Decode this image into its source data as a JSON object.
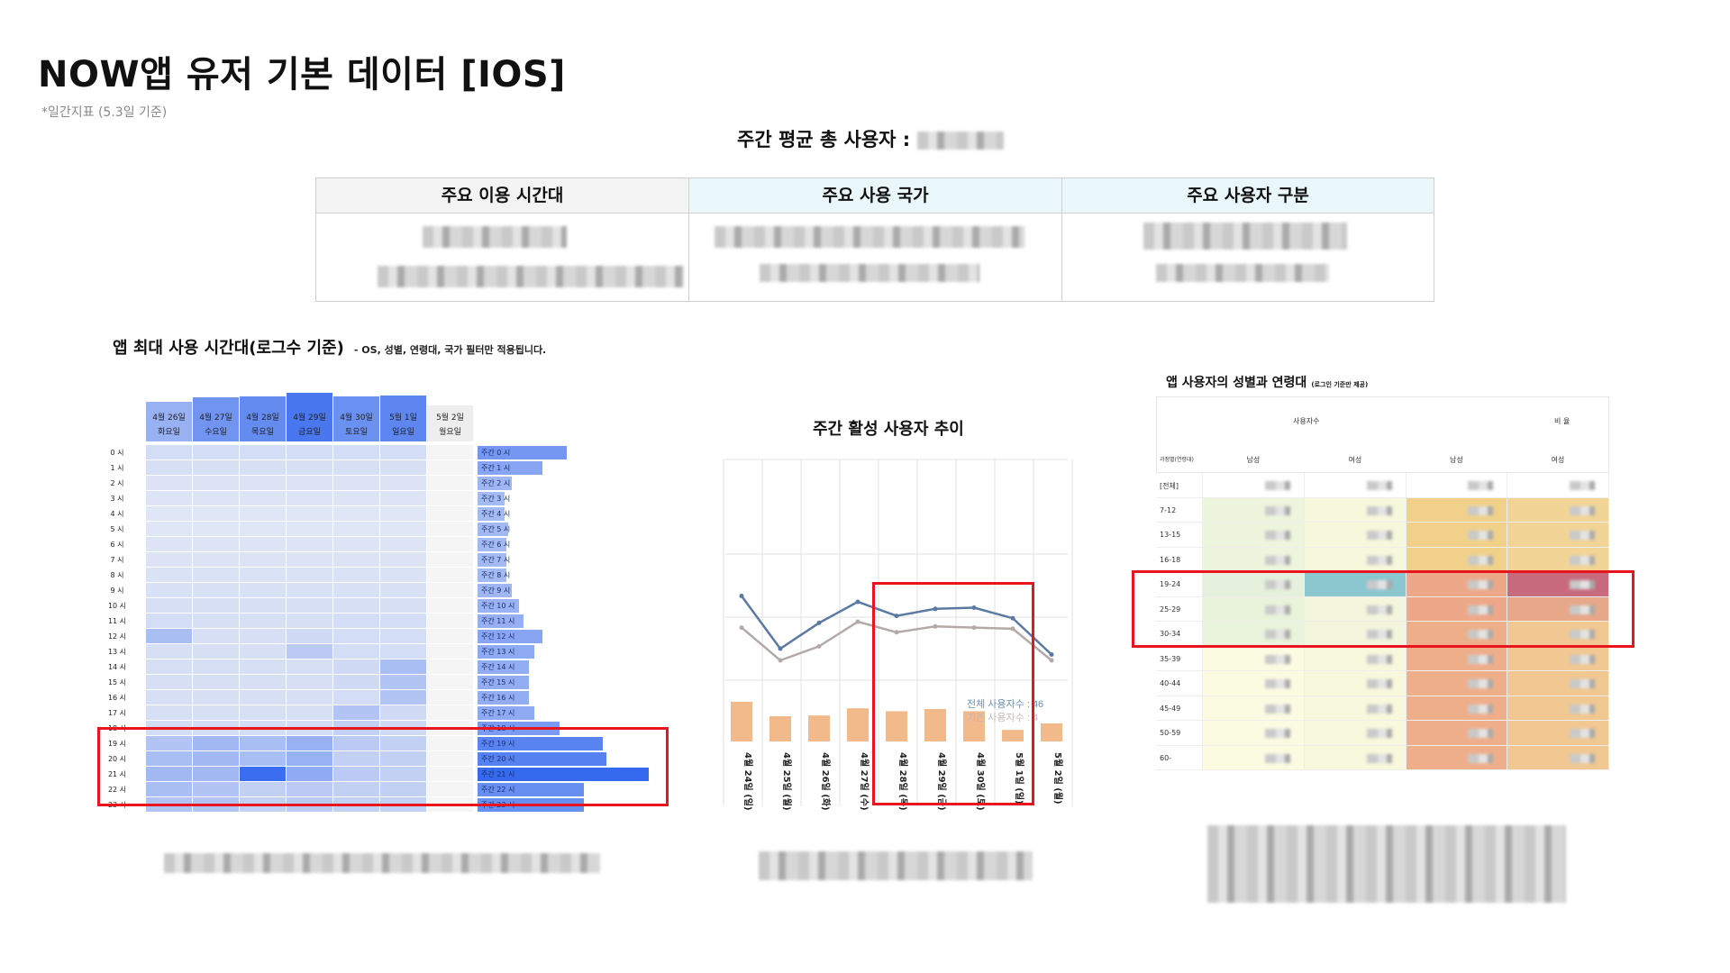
{
  "page": {
    "title": "NOW앱 유저 기본 데이터 [IOS]",
    "subtitle": "*일간지표 (5.3일 기준)",
    "weekly_total_label": "주간 평균 총 사용자 :"
  },
  "summary": {
    "columns": [
      {
        "label": "주요 이용 시간대",
        "bg": "#f3f3f3"
      },
      {
        "label": "주요 사용 국가",
        "bg": "#eaf7fa"
      },
      {
        "label": "주요 사용자 구분",
        "bg": "#eaf7fa"
      }
    ]
  },
  "heatmap": {
    "title": "앱 최대 사용 시간대(로그수 기준)",
    "note": "- OS, 성별, 연령대, 국가 필터만 적용됩니다.",
    "days": [
      {
        "date": "4월 26일",
        "weekday": "화요일",
        "level": 0.25
      },
      {
        "date": "4월 27일",
        "weekday": "수요일",
        "level": 0.55
      },
      {
        "date": "4월 28일",
        "weekday": "목요일",
        "level": 0.65
      },
      {
        "date": "4월 29일",
        "weekday": "금요일",
        "level": 0.85
      },
      {
        "date": "4월 30일",
        "weekday": "토요일",
        "level": 0.6
      },
      {
        "date": "5월 1일",
        "weekday": "일요일",
        "level": 0.7
      },
      {
        "date": "5월 2일",
        "weekday": "월요일",
        "level": 0.0
      }
    ],
    "hours": [
      "0 시",
      "1 시",
      "2 시",
      "3 시",
      "4 시",
      "5 시",
      "6 시",
      "7 시",
      "8 시",
      "9 시",
      "10 시",
      "11 시",
      "12 시",
      "13 시",
      "14 시",
      "15 시",
      "16 시",
      "17 시",
      "18 시",
      "19 시",
      "20 시",
      "21 시",
      "22 시",
      "23 시"
    ],
    "weekly_labels": [
      "주간 0 시",
      "주간 1 시",
      "주간 2 시",
      "주간 3 시",
      "주간 4 시",
      "주간 5 시",
      "주간 6 시",
      "주간 7 시",
      "주간 8 시",
      "주간 9 시",
      "주간 10 시",
      "주간 11 시",
      "주간 12 시",
      "주간 13 시",
      "주간 14 시",
      "주간 15 시",
      "주간 16 시",
      "주간 17 시",
      "주간 18 시",
      "주간 19 시",
      "주간 20 시",
      "주간 21 시",
      "주간 22 시",
      "주간 23 시"
    ],
    "weekly_values": [
      0.52,
      0.38,
      0.2,
      0.16,
      0.16,
      0.18,
      0.17,
      0.17,
      0.17,
      0.2,
      0.24,
      0.27,
      0.38,
      0.33,
      0.3,
      0.3,
      0.3,
      0.33,
      0.48,
      0.73,
      0.75,
      1.0,
      0.62,
      0.62
    ],
    "cell_levels": [
      [
        0.1,
        0.1,
        0.1,
        0.1,
        0.1,
        0.1,
        0
      ],
      [
        0.08,
        0.08,
        0.08,
        0.08,
        0.08,
        0.08,
        0
      ],
      [
        0.05,
        0.05,
        0.05,
        0.05,
        0.05,
        0.05,
        0
      ],
      [
        0.04,
        0.04,
        0.04,
        0.04,
        0.04,
        0.04,
        0
      ],
      [
        0.03,
        0.03,
        0.03,
        0.03,
        0.03,
        0.03,
        0
      ],
      [
        0.03,
        0.03,
        0.03,
        0.03,
        0.03,
        0.03,
        0
      ],
      [
        0.04,
        0.04,
        0.04,
        0.04,
        0.04,
        0.04,
        0
      ],
      [
        0.05,
        0.05,
        0.05,
        0.05,
        0.05,
        0.05,
        0
      ],
      [
        0.06,
        0.06,
        0.06,
        0.06,
        0.06,
        0.06,
        0
      ],
      [
        0.07,
        0.07,
        0.07,
        0.07,
        0.07,
        0.07,
        0
      ],
      [
        0.08,
        0.08,
        0.08,
        0.08,
        0.08,
        0.08,
        0
      ],
      [
        0.1,
        0.08,
        0.08,
        0.08,
        0.1,
        0.1,
        0
      ],
      [
        0.35,
        0.08,
        0.08,
        0.12,
        0.1,
        0.1,
        0
      ],
      [
        0.08,
        0.08,
        0.08,
        0.25,
        0.1,
        0.1,
        0
      ],
      [
        0.08,
        0.08,
        0.08,
        0.08,
        0.12,
        0.35,
        0
      ],
      [
        0.08,
        0.08,
        0.08,
        0.08,
        0.12,
        0.3,
        0
      ],
      [
        0.08,
        0.08,
        0.08,
        0.08,
        0.1,
        0.3,
        0
      ],
      [
        0.08,
        0.08,
        0.08,
        0.08,
        0.3,
        0.12,
        0
      ],
      [
        0.1,
        0.1,
        0.1,
        0.1,
        0.2,
        0.12,
        0
      ],
      [
        0.3,
        0.4,
        0.35,
        0.45,
        0.25,
        0.2,
        0
      ],
      [
        0.35,
        0.4,
        0.35,
        0.45,
        0.2,
        0.2,
        0
      ],
      [
        0.4,
        0.4,
        1.0,
        0.5,
        0.25,
        0.2,
        0
      ],
      [
        0.35,
        0.3,
        0.2,
        0.25,
        0.2,
        0.2,
        0
      ],
      [
        0.3,
        0.3,
        0.2,
        0.25,
        0.2,
        0.2,
        0
      ]
    ]
  },
  "line_chart": {
    "title": "주간 활성 사용자 추이",
    "dates": [
      "4월 24일 (일)",
      "4월 25일 (월)",
      "4월 26일 (화)",
      "4월 27일 (수)",
      "4월 28일 (목)",
      "4월 29일 (금)",
      "4월 30일 (토)",
      "5월 1일 (일)",
      "5월 2일 (월)"
    ],
    "series": [
      {
        "name": "전체 사용자수",
        "color": "#5b7aa3",
        "values": [
          0.55,
          0.1,
          0.32,
          0.5,
          0.38,
          0.44,
          0.45,
          0.36,
          0.05
        ]
      },
      {
        "name": "기존 사용자수",
        "color": "#b3aaa7",
        "values": [
          0.28,
          0.0,
          0.12,
          0.33,
          0.24,
          0.29,
          0.28,
          0.27,
          0.0
        ]
      }
    ],
    "bars": [
      0.55,
      0.35,
      0.36,
      0.46,
      0.42,
      0.45,
      0.42,
      0.16,
      0.25
    ],
    "bar_color": "#f2b98a",
    "tooltip": {
      "line1": "전체 사용자수 : 46",
      "line2": "기존 사용자수 : 4"
    }
  },
  "age_table": {
    "title": "앱 사용자의 성별과 연령대",
    "title_note": "(로그인 기준만 제공)",
    "group_headers": [
      "사용자수",
      "비 율"
    ],
    "sub_headers": [
      "남성",
      "여성",
      "남성",
      "여성"
    ],
    "corner_label": "과정별(연령대)",
    "rows": [
      "[전체]",
      "7-12",
      "13-15",
      "16-18",
      "19-24",
      "25-29",
      "30-34",
      "35-39",
      "40-44",
      "45-49",
      "50-59",
      "60-"
    ]
  }
}
